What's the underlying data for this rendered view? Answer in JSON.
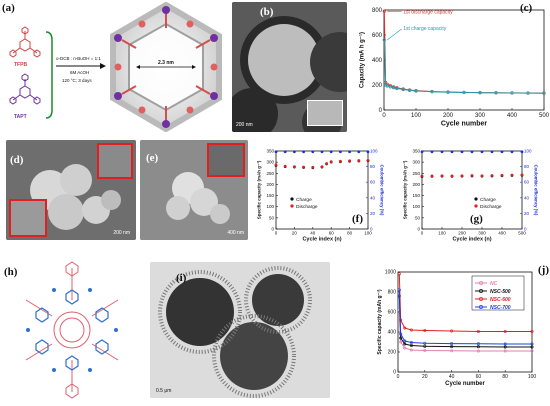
{
  "panels": {
    "a": {
      "label": "(a)",
      "monomer1": "TFPB",
      "monomer2": "TAPT",
      "cond1": "o-DCB : n-BuOH = 1:1",
      "cond2": "6M AcOH",
      "cond3": "120 °C; 3 days",
      "pore": "2.3 nm"
    },
    "b": {
      "label": "(b)",
      "scale": "200 nm"
    },
    "c": {
      "label": "(c)"
    },
    "d": {
      "label": "(d)",
      "scale": "200 nm"
    },
    "e": {
      "label": "(e)",
      "scale": "400 nm"
    },
    "f": {
      "label": "(f)"
    },
    "g": {
      "label": "(g)"
    },
    "h": {
      "label": "(h)"
    },
    "i": {
      "label": "(i)",
      "scale": "0.5 μm"
    },
    "j": {
      "label": "(j)"
    }
  },
  "chart_data": [
    {
      "id": "c",
      "type": "scatter",
      "xlabel": "Cycle number",
      "ylabel": "Capacity (mA h g⁻¹)",
      "xlim": [
        0,
        500
      ],
      "ylim": [
        0,
        800
      ],
      "xticks": [
        "0",
        "100",
        "200",
        "300",
        "400",
        "500"
      ],
      "yticks": [
        "0",
        "200",
        "400",
        "600",
        "800"
      ],
      "annotations": [
        "1st discharge capacity",
        "1st charge capacity"
      ],
      "series": [
        {
          "role": "discharge",
          "color": "#e03030",
          "x": [
            1,
            5,
            10,
            20,
            30,
            40,
            60,
            80,
            100,
            150,
            200,
            250,
            300,
            350,
            400,
            450,
            500
          ],
          "y": [
            790,
            220,
            205,
            195,
            185,
            178,
            168,
            160,
            155,
            148,
            144,
            141,
            139,
            138,
            137,
            136,
            135
          ]
        },
        {
          "role": "charge",
          "color": "#20a0b0",
          "x": [
            1,
            5,
            10,
            20,
            30,
            40,
            60,
            80,
            100,
            150,
            200,
            250,
            300,
            350,
            400,
            450,
            500
          ],
          "y": [
            560,
            200,
            192,
            185,
            178,
            172,
            164,
            157,
            152,
            146,
            142,
            140,
            138,
            137,
            136,
            135,
            134
          ]
        }
      ]
    },
    {
      "id": "f",
      "type": "scatter",
      "xlabel": "Cycle index (n)",
      "ylabel": "Specific capacity (mAh g⁻¹)",
      "y2label": "Coulombic efficiency (%)",
      "xlim": [
        0,
        100
      ],
      "ylim": [
        0,
        350
      ],
      "y2lim": [
        0,
        100
      ],
      "xticks": [
        "0",
        "20",
        "40",
        "60",
        "80",
        "100"
      ],
      "yticks": [
        "0",
        "50",
        "100",
        "150",
        "200",
        "250",
        "300",
        "350"
      ],
      "y2ticks": [
        "0",
        "20",
        "40",
        "60",
        "80",
        "100"
      ],
      "legend": [
        "Charge",
        "Discharge"
      ],
      "series": [
        {
          "name": "Charge",
          "color": "#111111",
          "x": [
            0,
            10,
            20,
            30,
            40,
            50,
            55,
            60,
            70,
            80,
            90,
            100
          ],
          "y": [
            285,
            280,
            278,
            276,
            275,
            278,
            292,
            300,
            302,
            304,
            305,
            306
          ]
        },
        {
          "name": "Discharge",
          "color": "#e02020",
          "x": [
            0,
            10,
            20,
            30,
            40,
            50,
            55,
            60,
            70,
            80,
            90,
            100
          ],
          "y": [
            288,
            282,
            280,
            278,
            277,
            280,
            294,
            302,
            304,
            306,
            307,
            308
          ]
        },
        {
          "name": "CE",
          "color": "#1a30d0",
          "x": [
            0,
            10,
            20,
            30,
            40,
            50,
            60,
            70,
            80,
            90,
            100
          ],
          "y": [
            99,
            99,
            99,
            99,
            99,
            99,
            99,
            99,
            99,
            99,
            99
          ]
        }
      ]
    },
    {
      "id": "g",
      "type": "scatter",
      "xlabel": "Cycle index (n)",
      "ylabel": "Specific capacity (mAh g⁻¹)",
      "y2label": "Coulombic efficiency (%)",
      "xlim": [
        0,
        500
      ],
      "ylim": [
        0,
        350
      ],
      "y2lim": [
        0,
        100
      ],
      "xticks": [
        "0",
        "100",
        "200",
        "300",
        "400",
        "500"
      ],
      "yticks": [
        "0",
        "50",
        "100",
        "150",
        "200",
        "250",
        "300",
        "350"
      ],
      "y2ticks": [
        "0",
        "20",
        "40",
        "60",
        "80",
        "100"
      ],
      "legend": [
        "Charge",
        "Discharge"
      ],
      "series": [
        {
          "name": "Charge",
          "color": "#111111",
          "x": [
            0,
            50,
            100,
            150,
            200,
            250,
            300,
            350,
            400,
            450,
            500
          ],
          "y": [
            235,
            236,
            237,
            236,
            237,
            238,
            237,
            238,
            239,
            240,
            241
          ]
        },
        {
          "name": "Discharge",
          "color": "#e02020",
          "x": [
            0,
            50,
            100,
            150,
            200,
            250,
            300,
            350,
            400,
            450,
            500
          ],
          "y": [
            238,
            238,
            239,
            238,
            239,
            240,
            239,
            240,
            241,
            242,
            243
          ]
        },
        {
          "name": "CE",
          "color": "#1a30d0",
          "x": [
            0,
            50,
            100,
            150,
            200,
            250,
            300,
            350,
            400,
            450,
            500
          ],
          "y": [
            99,
            99,
            99,
            99,
            99,
            99,
            99,
            99,
            99,
            99,
            99
          ]
        }
      ]
    },
    {
      "id": "j",
      "type": "line",
      "xlabel": "Cycle number",
      "ylabel": "Specific capacity (mAh g⁻¹)",
      "xlim": [
        0,
        100
      ],
      "ylim": [
        0,
        1000
      ],
      "xticks": [
        "0",
        "20",
        "40",
        "60",
        "80",
        "100"
      ],
      "yticks": [
        "0",
        "200",
        "400",
        "600",
        "800",
        "1000"
      ],
      "legend": [
        "NC",
        "NSC-500",
        "NSC-600",
        "NSC-700"
      ],
      "series": [
        {
          "name": "NC",
          "color": "#e080b0",
          "x": [
            1,
            2,
            5,
            10,
            20,
            40,
            60,
            80,
            100
          ],
          "y": [
            620,
            300,
            240,
            220,
            215,
            212,
            210,
            210,
            210
          ]
        },
        {
          "name": "NSC-500",
          "color": "#111111",
          "x": [
            1,
            2,
            5,
            10,
            20,
            40,
            60,
            80,
            100
          ],
          "y": [
            760,
            340,
            280,
            265,
            258,
            254,
            252,
            250,
            250
          ]
        },
        {
          "name": "NSC-600",
          "color": "#e02020",
          "x": [
            1,
            2,
            5,
            10,
            20,
            40,
            60,
            80,
            100
          ],
          "y": [
            980,
            520,
            440,
            420,
            415,
            410,
            405,
            405,
            405
          ]
        },
        {
          "name": "NSC-700",
          "color": "#2040e0",
          "x": [
            1,
            2,
            5,
            10,
            20,
            40,
            60,
            80,
            100
          ],
          "y": [
            820,
            380,
            310,
            295,
            288,
            284,
            282,
            280,
            280
          ]
        }
      ]
    }
  ]
}
